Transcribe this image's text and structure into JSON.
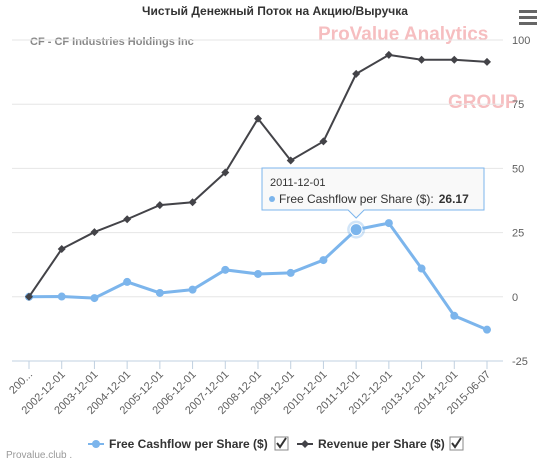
{
  "chart_data": {
    "type": "line",
    "title": "Чистый Денежный Поток на Акцию/Выручка",
    "subtitle": "CF - CF Industries Holdings Inc",
    "credit": "Provalue.club .",
    "watermark": [
      "ProValue Analytics",
      "GROUP"
    ],
    "categories": [
      "200...",
      "2002-12-01",
      "2003-12-01",
      "2004-12-01",
      "2005-12-01",
      "2006-12-01",
      "2007-12-01",
      "2008-12-01",
      "2009-12-01",
      "2010-12-01",
      "2011-12-01",
      "2012-12-01",
      "2013-12-01",
      "2014-12-01",
      "2015-06-07"
    ],
    "series": [
      {
        "name": "Free Cashflow per Share ($)",
        "color": "#7cb5ec",
        "values": [
          0,
          0.1,
          -0.5,
          5.8,
          1.5,
          2.8,
          10.5,
          8.9,
          9.3,
          14.3,
          26.17,
          28.7,
          11,
          -7.4,
          -12.8
        ]
      },
      {
        "name": "Revenue per Share ($)",
        "color": "#434348",
        "values": [
          0,
          18.6,
          25.2,
          30.2,
          35.7,
          36.8,
          48.4,
          69.4,
          53.1,
          60.5,
          86.8,
          94.2,
          92.3,
          92.3,
          91.5
        ]
      }
    ],
    "ylim": [
      -25,
      100
    ],
    "yticks": [
      -25,
      0,
      25,
      50,
      75,
      100
    ],
    "grid": true,
    "tooltip": {
      "label": "Free Cashflow per Share ($):"
    }
  }
}
